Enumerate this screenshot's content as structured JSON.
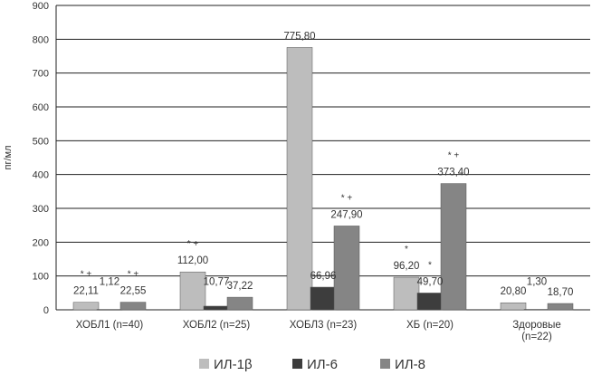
{
  "chart_data": {
    "type": "bar",
    "ylabel": "пг/мл",
    "ylim": [
      0,
      900
    ],
    "yticks": [
      0,
      100,
      200,
      300,
      400,
      500,
      600,
      700,
      800,
      900
    ],
    "grid": true,
    "legend_position": "bottom",
    "categories": [
      [
        "ХОБЛ1 (n=40)"
      ],
      [
        "ХОБЛ2 (n=25)"
      ],
      [
        "ХОБЛ3 (n=23)"
      ],
      [
        "ХБ (n=20)"
      ],
      [
        "Здоровые",
        "(n=22)"
      ]
    ],
    "series": [
      {
        "name": "ИЛ-1β",
        "color": "#bdbdbd",
        "values": [
          22.11,
          112.0,
          775.8,
          96.2,
          20.8
        ],
        "labels": [
          "22,11",
          "112,00",
          "775,80",
          "96,20",
          "20,80"
        ],
        "markers": [
          "* +",
          "* +",
          "",
          "*",
          ""
        ]
      },
      {
        "name": "ИЛ-6",
        "color": "#3d3d3d",
        "values": [
          1.12,
          10.77,
          66.96,
          49.7,
          1.3
        ],
        "labels": [
          "1,12",
          "10,77",
          "66,96",
          "49,70",
          "1,30"
        ],
        "markers": [
          "",
          "",
          "",
          "*",
          ""
        ]
      },
      {
        "name": "ИЛ-8",
        "color": "#858585",
        "values": [
          22.55,
          37.22,
          247.9,
          373.4,
          18.7
        ],
        "labels": [
          "22,55",
          "37,22",
          "247,90",
          "373,40",
          "18,70"
        ],
        "markers": [
          "* +",
          "",
          "* +",
          "* +",
          ""
        ]
      }
    ]
  }
}
